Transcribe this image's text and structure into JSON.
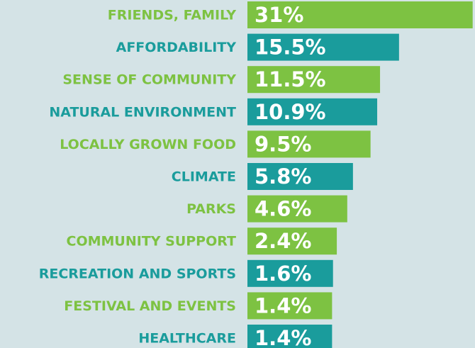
{
  "chart_data": {
    "type": "bar",
    "orientation": "horizontal",
    "categories": [
      "FRIENDS, FAMILY",
      "AFFORDABILITY",
      "SENSE OF COMMUNITY",
      "NATURAL ENVIRONMENT",
      "LOCALLY GROWN FOOD",
      "CLIMATE",
      "PARKS",
      "COMMUNITY SUPPORT",
      "RECREATION AND SPORTS",
      "FESTIVAL AND EVENTS",
      "HEALTHCARE"
    ],
    "values": [
      31,
      15.5,
      11.5,
      10.9,
      9.5,
      5.8,
      4.6,
      2.4,
      1.6,
      1.4,
      1.4
    ],
    "value_labels": [
      "31%",
      "15.5%",
      "11.5%",
      "10.9%",
      "9.5%",
      "5.8%",
      "4.6%",
      "2.4%",
      "1.6%",
      "1.4%",
      "1.4%"
    ],
    "colors": [
      "#7dc242",
      "#1a9c9c",
      "#7dc242",
      "#1a9c9c",
      "#7dc242",
      "#1a9c9c",
      "#7dc242",
      "#7dc242",
      "#1a9c9c",
      "#7dc242",
      "#1a9c9c"
    ]
  }
}
